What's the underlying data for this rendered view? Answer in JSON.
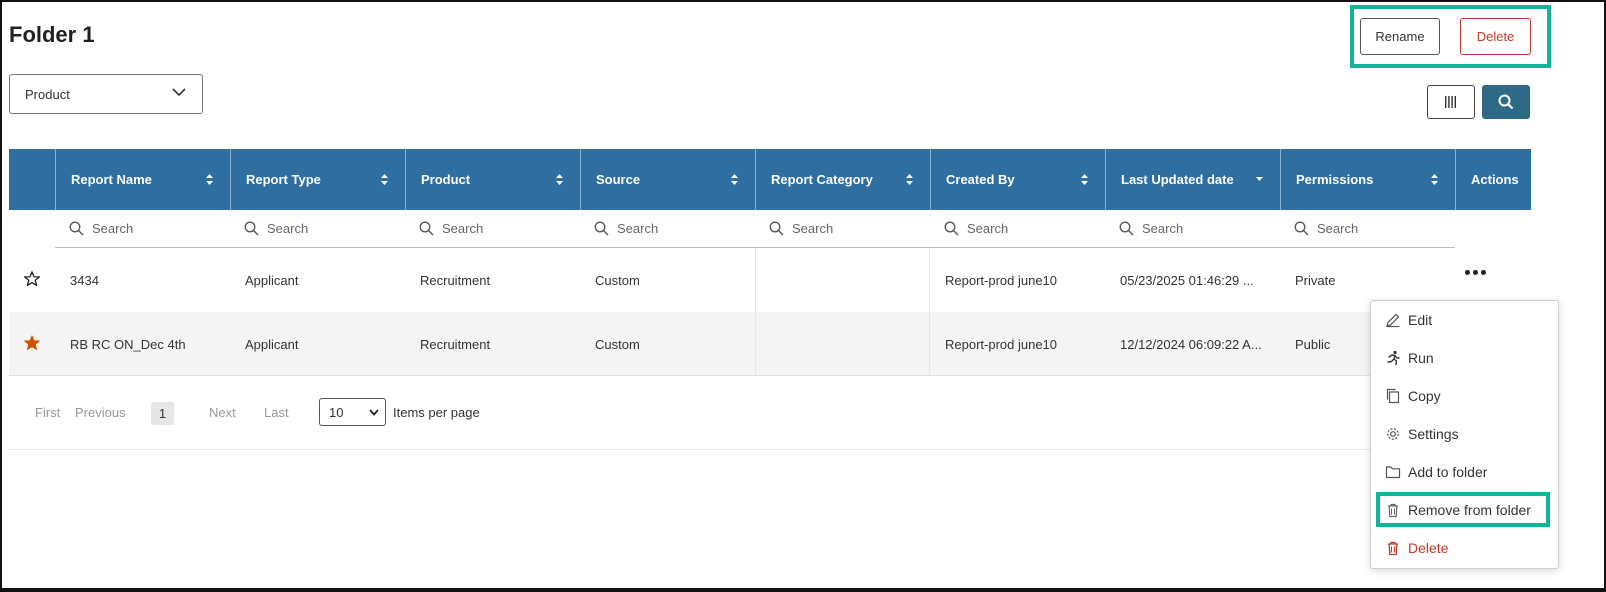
{
  "page": {
    "title": "Folder 1"
  },
  "header_actions": {
    "rename_label": "Rename",
    "delete_label": "Delete"
  },
  "product_filter": {
    "selected": "Product"
  },
  "toolbar": {
    "columns_icon": "columns-icon",
    "search_icon": "search-icon"
  },
  "colors": {
    "header_bg": "#2e6ea0",
    "search_btn": "#2e6a85",
    "highlight": "#13b29a",
    "danger": "#c0392b",
    "favorite": "#d35400"
  },
  "table": {
    "columns": [
      "Report Name",
      "Report Type",
      "Product",
      "Source",
      "Report Category",
      "Created By",
      "Last Updated date",
      "Permissions",
      "Actions"
    ],
    "search_placeholder": "Search",
    "rows": [
      {
        "favorite": false,
        "name": "3434",
        "type": "Applicant",
        "product": "Recruitment",
        "source": "Custom",
        "category": "",
        "created_by": "Report-prod june10",
        "updated": "05/23/2025 01:46:29 ...",
        "permissions": "Private"
      },
      {
        "favorite": true,
        "name": "RB RC ON_Dec 4th",
        "type": "Applicant",
        "product": "Recruitment",
        "source": "Custom",
        "category": "",
        "created_by": "Report-prod june10",
        "updated": "12/12/2024 06:09:22 A...",
        "permissions": "Public"
      }
    ]
  },
  "pagination": {
    "first": "First",
    "previous": "Previous",
    "current": "1",
    "next": "Next",
    "last": "Last",
    "page_size": "10",
    "items_per_page": "Items per page"
  },
  "actions_menu": {
    "items": [
      {
        "label": "Edit",
        "icon": "pencil-icon"
      },
      {
        "label": "Run",
        "icon": "running-person-icon"
      },
      {
        "label": "Copy",
        "icon": "copy-icon"
      },
      {
        "label": "Settings",
        "icon": "gear-icon"
      },
      {
        "label": "Add to folder",
        "icon": "folder-icon"
      },
      {
        "label": "Remove from folder",
        "icon": "trash-icon"
      },
      {
        "label": "Delete",
        "icon": "trash-icon"
      }
    ]
  }
}
